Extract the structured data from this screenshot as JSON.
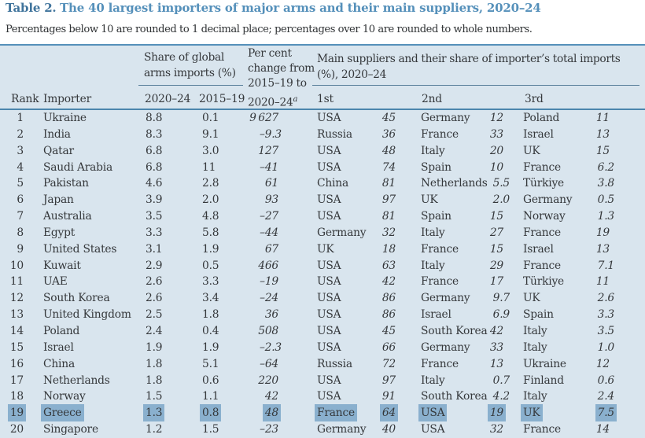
{
  "title": {
    "label": "Table 2.",
    "text": "The 40 largest importers of major arms and their main suppliers, 2020–24"
  },
  "note": "Percentages below 10 are rounded to 1 decimal place; percentages over 10 are rounded to whole numbers.",
  "colors": {
    "accent_blue": "#5590ba",
    "table_background": "#d9e5ee",
    "selection_highlight": "#8ab0ce",
    "header_rule": "#4c86ad",
    "text": "#35383b"
  },
  "table": {
    "headers": {
      "rank": "Rank",
      "importer": "Importer",
      "share_group": "Share of global arms imports (%)",
      "share_col_2020_24": "2020–24",
      "share_col_2015_19": "2015–19",
      "change_line1": "Per cent",
      "change_line2": "change from",
      "change_line3": "2015–19 to",
      "change_line4": "2020–24",
      "change_footnote_marker": "a",
      "suppliers_group": "Main suppliers and their share of importer’s total imports (%), 2020–24",
      "supplier_1st": "1st",
      "supplier_2nd": "2nd",
      "supplier_3rd": "3rd"
    },
    "rows": [
      {
        "rank": "1",
        "importer": "Ukraine",
        "share_2020_24": "8.8",
        "share_2015_19": "0.1",
        "change": "9 627",
        "s1_name": "USA",
        "s1_share": "45",
        "s2_name": "Germany",
        "s2_share": "12",
        "s3_name": "Poland",
        "s3_share": "11",
        "highlight": false
      },
      {
        "rank": "2",
        "importer": "India",
        "share_2020_24": "8.3",
        "share_2015_19": "9.1",
        "change": "–9.3",
        "s1_name": "Russia",
        "s1_share": "36",
        "s2_name": "France",
        "s2_share": "33",
        "s3_name": "Israel",
        "s3_share": "13",
        "highlight": false
      },
      {
        "rank": "3",
        "importer": "Qatar",
        "share_2020_24": "6.8",
        "share_2015_19": "3.0",
        "change": "127",
        "s1_name": "USA",
        "s1_share": "48",
        "s2_name": "Italy",
        "s2_share": "20",
        "s3_name": "UK",
        "s3_share": "15",
        "highlight": false
      },
      {
        "rank": "4",
        "importer": "Saudi Arabia",
        "share_2020_24": "6.8",
        "share_2015_19": "11",
        "change": "–41",
        "s1_name": "USA",
        "s1_share": "74",
        "s2_name": "Spain",
        "s2_share": "10",
        "s3_name": "France",
        "s3_share": "6.2",
        "highlight": false
      },
      {
        "rank": "5",
        "importer": "Pakistan",
        "share_2020_24": "4.6",
        "share_2015_19": "2.8",
        "change": "61",
        "s1_name": "China",
        "s1_share": "81",
        "s2_name": "Netherlands",
        "s2_share": "5.5",
        "s3_name": "Türkiye",
        "s3_share": "3.8",
        "highlight": false
      },
      {
        "rank": "6",
        "importer": "Japan",
        "share_2020_24": "3.9",
        "share_2015_19": "2.0",
        "change": "93",
        "s1_name": "USA",
        "s1_share": "97",
        "s2_name": "UK",
        "s2_share": "2.0",
        "s3_name": "Germany",
        "s3_share": "0.5",
        "highlight": false
      },
      {
        "rank": "7",
        "importer": "Australia",
        "share_2020_24": "3.5",
        "share_2015_19": "4.8",
        "change": "–27",
        "s1_name": "USA",
        "s1_share": "81",
        "s2_name": "Spain",
        "s2_share": "15",
        "s3_name": "Norway",
        "s3_share": "1.3",
        "highlight": false
      },
      {
        "rank": "8",
        "importer": "Egypt",
        "share_2020_24": "3.3",
        "share_2015_19": "5.8",
        "change": "–44",
        "s1_name": "Germany",
        "s1_share": "32",
        "s2_name": "Italy",
        "s2_share": "27",
        "s3_name": "France",
        "s3_share": "19",
        "highlight": false
      },
      {
        "rank": "9",
        "importer": "United States",
        "share_2020_24": "3.1",
        "share_2015_19": "1.9",
        "change": "67",
        "s1_name": "UK",
        "s1_share": "18",
        "s2_name": "France",
        "s2_share": "15",
        "s3_name": "Israel",
        "s3_share": "13",
        "highlight": false
      },
      {
        "rank": "10",
        "importer": "Kuwait",
        "share_2020_24": "2.9",
        "share_2015_19": "0.5",
        "change": "466",
        "s1_name": "USA",
        "s1_share": "63",
        "s2_name": "Italy",
        "s2_share": "29",
        "s3_name": "France",
        "s3_share": "7.1",
        "highlight": false
      },
      {
        "rank": "11",
        "importer": "UAE",
        "share_2020_24": "2.6",
        "share_2015_19": "3.3",
        "change": "–19",
        "s1_name": "USA",
        "s1_share": "42",
        "s2_name": "France",
        "s2_share": "17",
        "s3_name": "Türkiye",
        "s3_share": "11",
        "highlight": false
      },
      {
        "rank": "12",
        "importer": "South Korea",
        "share_2020_24": "2.6",
        "share_2015_19": "3.4",
        "change": "–24",
        "s1_name": "USA",
        "s1_share": "86",
        "s2_name": "Germany",
        "s2_share": "9.7",
        "s3_name": "UK",
        "s3_share": "2.6",
        "highlight": false
      },
      {
        "rank": "13",
        "importer": "United Kingdom",
        "share_2020_24": "2.5",
        "share_2015_19": "1.8",
        "change": "36",
        "s1_name": "USA",
        "s1_share": "86",
        "s2_name": "Israel",
        "s2_share": "6.9",
        "s3_name": "Spain",
        "s3_share": "3.3",
        "highlight": false
      },
      {
        "rank": "14",
        "importer": "Poland",
        "share_2020_24": "2.4",
        "share_2015_19": "0.4",
        "change": "508",
        "s1_name": "USA",
        "s1_share": "45",
        "s2_name": "South Korea",
        "s2_share": "42",
        "s3_name": "Italy",
        "s3_share": "3.5",
        "highlight": false
      },
      {
        "rank": "15",
        "importer": "Israel",
        "share_2020_24": "1.9",
        "share_2015_19": "1.9",
        "change": "–2.3",
        "s1_name": "USA",
        "s1_share": "66",
        "s2_name": "Germany",
        "s2_share": "33",
        "s3_name": "Italy",
        "s3_share": "1.0",
        "highlight": false
      },
      {
        "rank": "16",
        "importer": "China",
        "share_2020_24": "1.8",
        "share_2015_19": "5.1",
        "change": "–64",
        "s1_name": "Russia",
        "s1_share": "72",
        "s2_name": "France",
        "s2_share": "13",
        "s3_name": "Ukraine",
        "s3_share": "12",
        "highlight": false
      },
      {
        "rank": "17",
        "importer": "Netherlands",
        "share_2020_24": "1.8",
        "share_2015_19": "0.6",
        "change": "220",
        "s1_name": "USA",
        "s1_share": "97",
        "s2_name": "Italy",
        "s2_share": "0.7",
        "s3_name": "Finland",
        "s3_share": "0.6",
        "highlight": false
      },
      {
        "rank": "18",
        "importer": "Norway",
        "share_2020_24": "1.5",
        "share_2015_19": "1.1",
        "change": "42",
        "s1_name": "USA",
        "s1_share": "91",
        "s2_name": "South Korea",
        "s2_share": "4.2",
        "s3_name": "Italy",
        "s3_share": "2.4",
        "highlight": false
      },
      {
        "rank": "19",
        "importer": "Greece",
        "share_2020_24": "1.3",
        "share_2015_19": "0.8",
        "change": "48",
        "s1_name": "France",
        "s1_share": "64",
        "s2_name": "USA",
        "s2_share": "19",
        "s3_name": "UK",
        "s3_share": "7.5",
        "highlight": true
      },
      {
        "rank": "20",
        "importer": "Singapore",
        "share_2020_24": "1.2",
        "share_2015_19": "1.5",
        "change": "–23",
        "s1_name": "Germany",
        "s1_share": "40",
        "s2_name": "USA",
        "s2_share": "32",
        "s3_name": "France",
        "s3_share": "14",
        "highlight": false
      }
    ]
  }
}
